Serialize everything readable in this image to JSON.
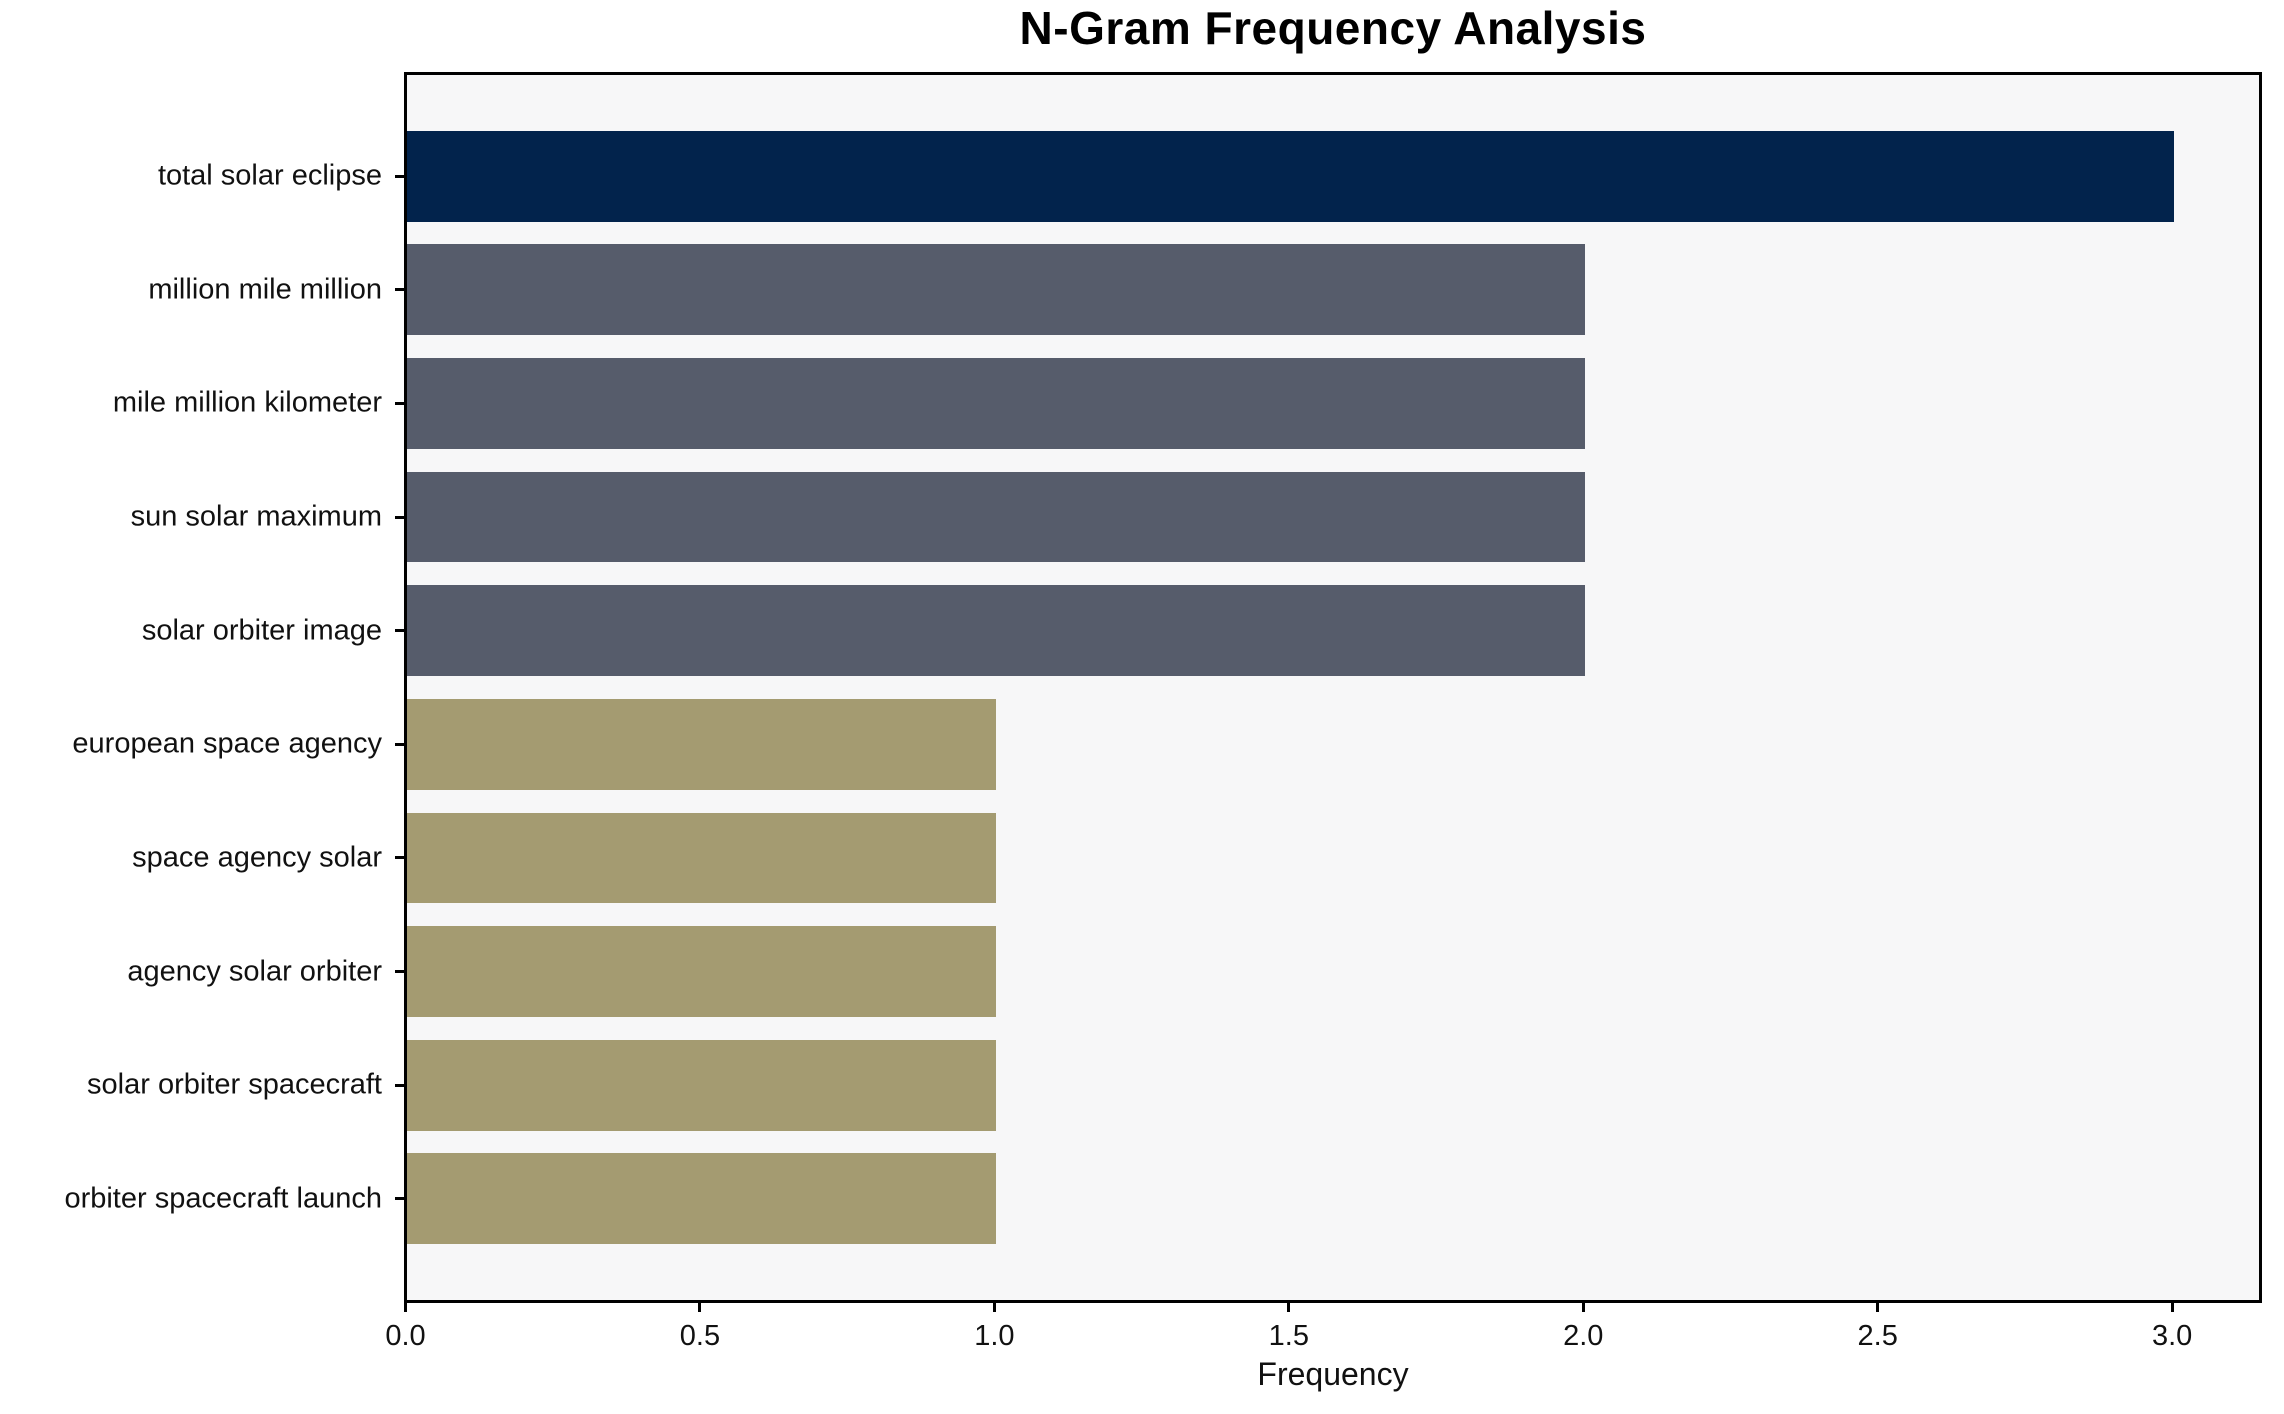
{
  "chart_data": {
    "type": "bar",
    "orientation": "horizontal",
    "title": "N-Gram Frequency Analysis",
    "xlabel": "Frequency",
    "ylabel": "",
    "categories": [
      "total solar eclipse",
      "million mile million",
      "mile million kilometer",
      "sun solar maximum",
      "solar orbiter image",
      "european space agency",
      "space agency solar",
      "agency solar orbiter",
      "solar orbiter spacecraft",
      "orbiter spacecraft launch"
    ],
    "values": [
      3,
      2,
      2,
      2,
      2,
      1,
      1,
      1,
      1,
      1
    ],
    "bar_colors": [
      "#02234c",
      "#565c6b",
      "#565c6b",
      "#565c6b",
      "#565c6b",
      "#a49b71",
      "#a49b71",
      "#a49b71",
      "#a49b71",
      "#a49b71"
    ],
    "xlim": [
      0,
      3.145
    ],
    "xticks": [
      0.0,
      0.5,
      1.0,
      1.5,
      2.0,
      2.5,
      3.0
    ],
    "xtick_labels": [
      "0.0",
      "0.5",
      "1.0",
      "1.5",
      "2.0",
      "2.5",
      "3.0"
    ],
    "bar_height_ratio": 0.8,
    "grid": false,
    "legend": false,
    "colors": {
      "plot_bg": "#f7f7f8",
      "figure_bg": "#ffffff",
      "spine": "#000000",
      "text": "#111111"
    }
  }
}
